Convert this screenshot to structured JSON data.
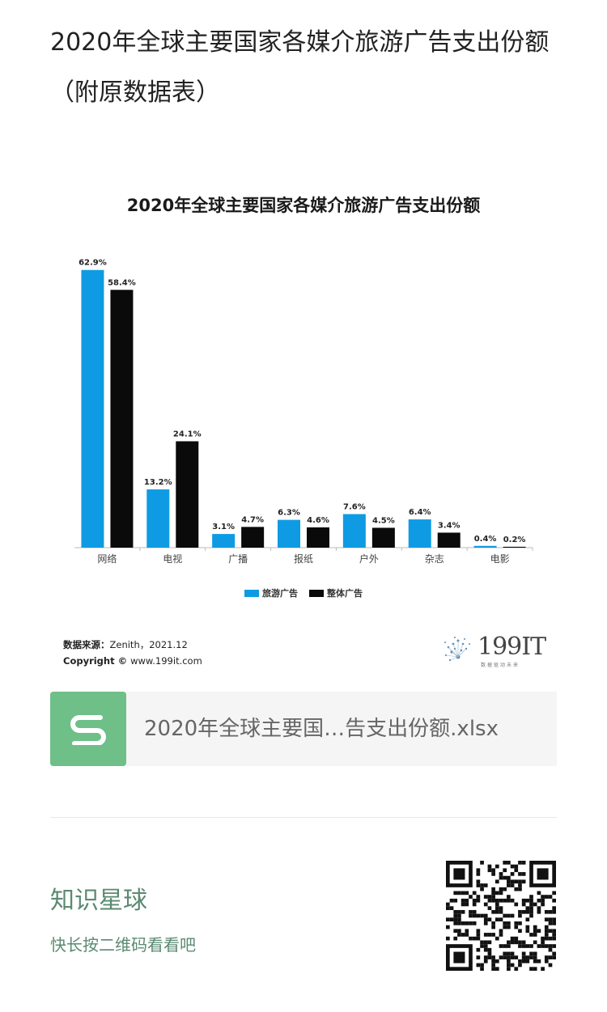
{
  "page": {
    "title": "2020年全球主要国家各媒介旅游广告支出份额（附原数据表）"
  },
  "chart_data": {
    "type": "bar",
    "title": "2020年全球主要国家各媒介旅游广告支出份额",
    "categories": [
      "网络",
      "电视",
      "广播",
      "报纸",
      "户外",
      "杂志",
      "电影"
    ],
    "series": [
      {
        "name": "旅游广告",
        "values": [
          62.9,
          13.2,
          3.1,
          6.3,
          7.6,
          6.4,
          0.4
        ],
        "labels": [
          "62.9%",
          "13.2%",
          "3.1%",
          "6.3%",
          "7.6%",
          "6.4%",
          "0.4%"
        ],
        "color": "#0f9be3"
      },
      {
        "name": "整体广告",
        "values": [
          58.4,
          24.1,
          4.7,
          4.6,
          4.5,
          3.4,
          0.2
        ],
        "labels": [
          "58.4%",
          "24.1%",
          "4.7%",
          "4.6%",
          "4.5%",
          "3.4%",
          "0.2%"
        ],
        "color": "#0a0a0a"
      }
    ],
    "ylim": [
      0,
      70
    ],
    "legend": "bottom",
    "grid": false,
    "source_label": "数据来源：",
    "source_value": "Zenith，2021.12",
    "copyright_label": "Copyright © ",
    "copyright_value": "www.199it.com"
  },
  "logo": {
    "text": "199IT",
    "sub": "数据驱动未来"
  },
  "attachment": {
    "name": "2020年全球主要国…告支出份额.xlsx",
    "icon": "spreadsheet-s-icon",
    "icon_color": "#6fbf88"
  },
  "planet": {
    "title": "知识星球",
    "subtitle": "快长按二维码看看吧",
    "color": "#5a8a72"
  }
}
